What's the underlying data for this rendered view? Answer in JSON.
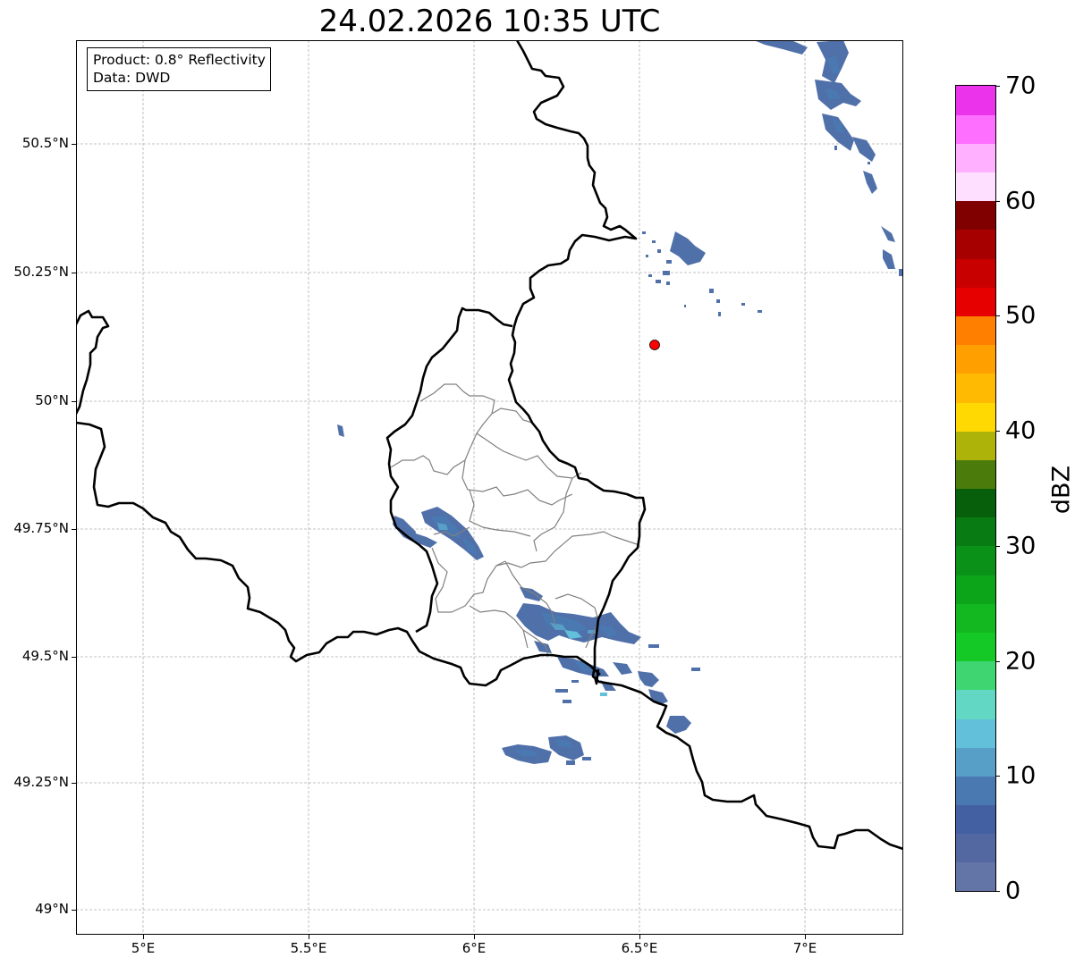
{
  "title": "24.02.2026 10:35 UTC",
  "info_box": {
    "product_line": "Product: 0.8° Reflectivity",
    "data_line": "Data: DWD"
  },
  "axes": {
    "lat_ticks": [
      "49°N",
      "49.25°N",
      "49.5°N",
      "49.75°N",
      "50°N",
      "50.25°N",
      "50.5°N"
    ],
    "lon_ticks": [
      "5°E",
      "5.5°E",
      "6°E",
      "6.5°E",
      "7°E"
    ]
  },
  "colorbar": {
    "unit": "dBZ",
    "range": [
      0,
      70
    ],
    "labels": [
      "0",
      "10",
      "20",
      "30",
      "40",
      "50",
      "60",
      "70"
    ],
    "colors": [
      "#6374a6",
      "#5367a0",
      "#4360a3",
      "#4a79b1",
      "#589fc7",
      "#62c0da",
      "#62d8c4",
      "#3fd672",
      "#14c925",
      "#13b71f",
      "#0ca51a",
      "#0a9117",
      "#097b13",
      "#075f0c",
      "#4b7c0b",
      "#adb309",
      "#ffd901",
      "#ffba01",
      "#ff9f00",
      "#ff8000",
      "#e60000",
      "#c80000",
      "#a70000",
      "#800000",
      "#ffdfff",
      "#ffb0ff",
      "#ff6fff",
      "#ea33ea"
    ]
  },
  "marker": {
    "name": "radar-site",
    "color": "#ff0000"
  },
  "colors": {
    "country_border": "#000000",
    "canton_border": "#808080",
    "grid": "#b0b0b0"
  }
}
